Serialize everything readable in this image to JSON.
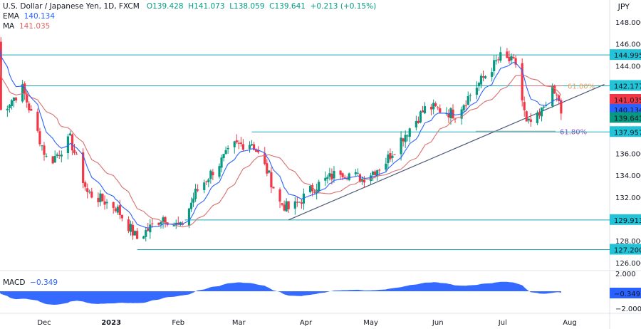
{
  "header": {
    "symbol": "U.S. Dollar / Japanese Yen, 1D, FXCM",
    "open": "O139.428",
    "high": "H141.073",
    "low": "L138.059",
    "close": "C139.641",
    "change": "+0.213 (+0.15%)"
  },
  "indicators": {
    "ema_label": "EMA",
    "ema_value": "140.134",
    "ma_label": "MA",
    "ma_value": "141.035",
    "macd_label": "MACD",
    "macd_value": "−0.349"
  },
  "currency": "JPY",
  "colors": {
    "up": "#089981",
    "down": "#f23645",
    "ema": "#2962ff",
    "ma": "#d9706f",
    "level": "#1fa9b8",
    "tag": "#22c3d6",
    "macd": "#2962ff"
  },
  "chart_data": {
    "type": "candlestick",
    "price_axis": {
      "ticks": [
        "148.000",
        "146.000",
        "144.000",
        "136.000",
        "134.000",
        "132.000",
        "128.000",
        "126.000"
      ],
      "range": [
        126,
        148
      ]
    },
    "x_ticks": [
      {
        "label": "Dec",
        "date": "2022-12-01"
      },
      {
        "label": "2023",
        "date": "2023-01-01"
      },
      {
        "label": "Feb",
        "date": "2023-02-01"
      },
      {
        "label": "Mar",
        "date": "2023-03-01"
      },
      {
        "label": "Apr",
        "date": "2023-04-01"
      },
      {
        "label": "May",
        "date": "2023-05-01"
      },
      {
        "label": "Jun",
        "date": "2023-06-01"
      },
      {
        "label": "Jul",
        "date": "2023-07-01"
      },
      {
        "label": "Aug",
        "date": "2023-08-01"
      }
    ],
    "close_anchors": [
      [
        "2022-11-10",
        146.1
      ],
      [
        "2022-11-11",
        139.9
      ],
      [
        "2022-11-21",
        141.9
      ],
      [
        "2022-12-03",
        135.0
      ],
      [
        "2022-12-13",
        137.3
      ],
      [
        "2022-12-21",
        132.4
      ],
      [
        "2023-01-03",
        131.1
      ],
      [
        "2023-01-13",
        128.2
      ],
      [
        "2023-01-25",
        130.2
      ],
      [
        "2023-02-02",
        129.2
      ],
      [
        "2023-02-09",
        132.4
      ],
      [
        "2023-02-17",
        134.4
      ],
      [
        "2023-02-27",
        136.7
      ],
      [
        "2023-03-07",
        137.0
      ],
      [
        "2023-03-14",
        134.4
      ],
      [
        "2023-03-20",
        131.5
      ],
      [
        "2023-03-25",
        130.8
      ],
      [
        "2023-04-04",
        132.8
      ],
      [
        "2023-04-17",
        134.4
      ],
      [
        "2023-04-27",
        133.7
      ],
      [
        "2023-05-07",
        135.0
      ],
      [
        "2023-05-15",
        137.3
      ],
      [
        "2023-05-27",
        140.3
      ],
      [
        "2023-06-09",
        139.6
      ],
      [
        "2023-06-22",
        142.9
      ],
      [
        "2023-06-30",
        144.8
      ],
      [
        "2023-07-07",
        144.2
      ],
      [
        "2023-07-12",
        138.6
      ],
      [
        "2023-07-18",
        139.3
      ],
      [
        "2023-07-23",
        141.9
      ],
      [
        "2023-07-27",
        140.9
      ],
      [
        "2023-07-28",
        139.641
      ]
    ],
    "levels": [
      {
        "value": 144.995,
        "label": "144.995",
        "from": "2022-11-10"
      },
      {
        "value": 142.177,
        "label": "142.177",
        "from": "2022-11-20"
      },
      {
        "value": 137.957,
        "label": "137.957",
        "from": "2023-03-07"
      },
      {
        "value": 129.913,
        "label": "129.913",
        "from": "2023-02-04"
      },
      {
        "value": 127.2,
        "label": "127.200",
        "from": "2023-01-13"
      }
    ],
    "price_tags": [
      {
        "label": "141.035",
        "value": 141.035,
        "color": "#f23645"
      },
      {
        "label": "140.134",
        "value": 140.134,
        "color": "#2962ff"
      },
      {
        "label": "139.641",
        "value": 139.641,
        "color": "#089981"
      }
    ],
    "trendline": [
      [
        "2023-03-24",
        129.913
      ],
      [
        "2023-08-17",
        142.3
      ]
    ],
    "fib": [
      {
        "label": "61.80%",
        "value": 142.177,
        "color": "#e8a060"
      },
      {
        "label": "61.80%",
        "value": 137.957,
        "color": "#7e57c2"
      }
    ],
    "macd_axis": {
      "ticks": [
        "2.000",
        "−2.000"
      ],
      "range": [
        -2.5,
        2.5
      ],
      "current": "−0.349"
    }
  }
}
